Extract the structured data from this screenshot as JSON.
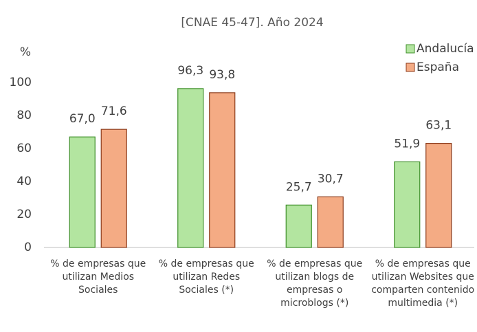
{
  "chart_data": {
    "type": "bar",
    "title": "[CNAE 45-47]. Año 2024",
    "y_label": "%",
    "categories": [
      "% de empresas que utilizan Medios Sociales",
      "% de empresas que utilizan Redes Sociales (*)",
      "% de empresas que utilizan blogs de empresas o microblogs (*)",
      "% de empresas que utilizan Websites que comparten contenido multimedia (*)"
    ],
    "series": [
      {
        "name": "Andalucía",
        "color": "#b3e5a0",
        "border": "#3f8f2a",
        "values": [
          67.0,
          96.3,
          25.7,
          51.9
        ],
        "value_labels": [
          "67,0",
          "96,3",
          "25,7",
          "51,9"
        ]
      },
      {
        "name": "España",
        "color": "#f4ab84",
        "border": "#8c3b1c",
        "values": [
          71.6,
          93.8,
          30.7,
          63.1
        ],
        "value_labels": [
          "71,6",
          "93,8",
          "30,7",
          "63,1"
        ]
      }
    ],
    "ylim": [
      0,
      100
    ],
    "yticks": [
      0,
      20,
      40,
      60,
      80,
      100
    ],
    "grid": false,
    "legend": "top-right"
  }
}
